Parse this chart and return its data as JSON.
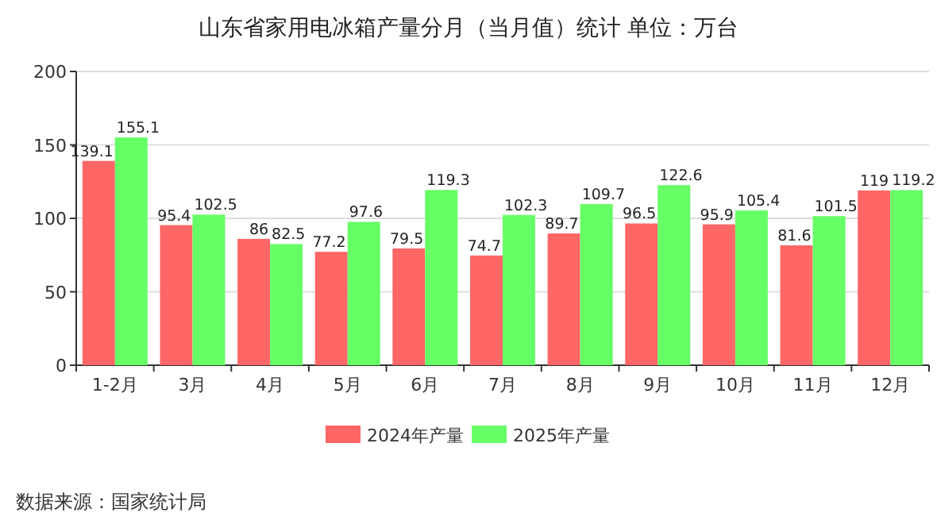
{
  "chart_data": {
    "type": "bar",
    "title": "山东省家用电冰箱产量分月（当月值）统计  单位：万台",
    "categories": [
      "1-2月",
      "3月",
      "4月",
      "5月",
      "6月",
      "7月",
      "8月",
      "9月",
      "10月",
      "11月",
      "12月"
    ],
    "series": [
      {
        "name": "2024年产量",
        "color": "#ff6666",
        "values": [
          139.1,
          95.4,
          86,
          77.2,
          79.5,
          74.7,
          89.7,
          96.5,
          95.9,
          81.6,
          119
        ]
      },
      {
        "name": "2025年产量",
        "color": "#66ff66",
        "values": [
          155.1,
          102.5,
          82.5,
          97.6,
          119.3,
          102.3,
          109.7,
          122.6,
          105.4,
          101.5,
          119.2
        ]
      }
    ],
    "ylim": [
      0,
      200
    ],
    "yticks": [
      0,
      50,
      100,
      150,
      200
    ],
    "grid": "y",
    "legend": "bottom",
    "data_labels": true,
    "annotations": [
      "数据来源：国家统计局"
    ]
  }
}
